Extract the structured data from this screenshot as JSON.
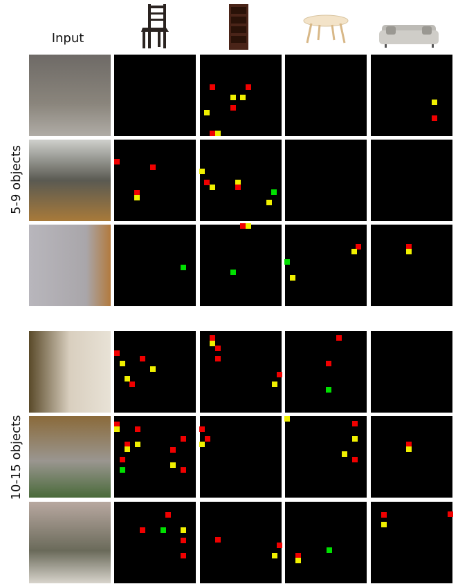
{
  "header": {
    "input_label": "Input"
  },
  "groups": [
    {
      "label": "5-9 objects"
    },
    {
      "label": "10-15 objects"
    }
  ]
}
